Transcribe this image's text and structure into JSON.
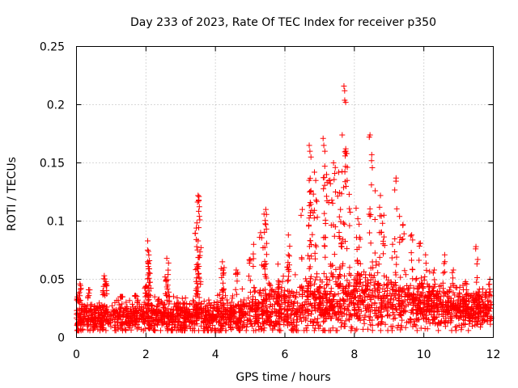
{
  "chart_data": {
    "type": "scatter",
    "title": "Day 233 of 2023, Rate Of TEC Index for receiver p350",
    "xlabel": "GPS time / hours",
    "ylabel": "ROTI / TECUs",
    "xlim": [
      0,
      12
    ],
    "ylim": [
      0,
      0.25
    ],
    "x_ticks": [
      "0",
      "2",
      "4",
      "6",
      "8",
      "10",
      "12"
    ],
    "y_ticks": [
      "0",
      "0.05",
      "0.1",
      "0.15",
      "0.2",
      "0.25"
    ],
    "grid": true,
    "marker": "plus",
    "color": "#ff0000",
    "series": [
      {
        "name": "ROTI",
        "points": [
          [
            0.05,
            0.031
          ],
          [
            0.1,
            0.046
          ],
          [
            0.35,
            0.041
          ],
          [
            0.8,
            0.053
          ],
          [
            0.85,
            0.048
          ],
          [
            1.3,
            0.035
          ],
          [
            1.7,
            0.036
          ],
          [
            2.0,
            0.044
          ],
          [
            2.05,
            0.083
          ],
          [
            2.07,
            0.074
          ],
          [
            2.1,
            0.066
          ],
          [
            2.6,
            0.068
          ],
          [
            2.65,
            0.064
          ],
          [
            2.55,
            0.052
          ],
          [
            3.45,
            0.094
          ],
          [
            3.5,
            0.122
          ],
          [
            3.52,
            0.118
          ],
          [
            3.55,
            0.101
          ],
          [
            3.5,
            0.083
          ],
          [
            3.5,
            0.063
          ],
          [
            4.2,
            0.065
          ],
          [
            4.25,
            0.06
          ],
          [
            4.6,
            0.058
          ],
          [
            5.1,
            0.08
          ],
          [
            5.3,
            0.09
          ],
          [
            5.4,
            0.106
          ],
          [
            5.45,
            0.11
          ],
          [
            5.45,
            0.097
          ],
          [
            5.0,
            0.067
          ],
          [
            5.8,
            0.063
          ],
          [
            6.1,
            0.071
          ],
          [
            6.1,
            0.088
          ],
          [
            6.5,
            0.11
          ],
          [
            6.7,
            0.165
          ],
          [
            6.72,
            0.16
          ],
          [
            6.75,
            0.155
          ],
          [
            6.7,
            0.135
          ],
          [
            6.75,
            0.126
          ],
          [
            6.85,
            0.142
          ],
          [
            6.9,
            0.118
          ],
          [
            7.1,
            0.171
          ],
          [
            7.12,
            0.165
          ],
          [
            7.15,
            0.16
          ],
          [
            7.2,
            0.14
          ],
          [
            7.3,
            0.135
          ],
          [
            7.35,
            0.118
          ],
          [
            7.4,
            0.15
          ],
          [
            7.45,
            0.146
          ],
          [
            7.55,
            0.142
          ],
          [
            7.6,
            0.11
          ],
          [
            7.65,
            0.174
          ],
          [
            7.7,
            0.216
          ],
          [
            7.72,
            0.212
          ],
          [
            7.75,
            0.202
          ],
          [
            7.78,
            0.158
          ],
          [
            7.85,
            0.123
          ],
          [
            8.05,
            0.111
          ],
          [
            8.1,
            0.102
          ],
          [
            8.15,
            0.086
          ],
          [
            8.45,
            0.174
          ],
          [
            8.5,
            0.157
          ],
          [
            8.6,
            0.126
          ],
          [
            8.75,
            0.122
          ],
          [
            8.85,
            0.105
          ],
          [
            9.1,
            0.08
          ],
          [
            9.2,
            0.137
          ],
          [
            9.3,
            0.104
          ],
          [
            9.4,
            0.097
          ],
          [
            9.65,
            0.088
          ],
          [
            9.9,
            0.081
          ],
          [
            10.05,
            0.071
          ],
          [
            10.3,
            0.058
          ],
          [
            10.6,
            0.071
          ],
          [
            10.85,
            0.058
          ],
          [
            11.2,
            0.048
          ],
          [
            11.5,
            0.078
          ],
          [
            11.55,
            0.067
          ],
          [
            11.9,
            0.05
          ]
        ]
      }
    ]
  }
}
